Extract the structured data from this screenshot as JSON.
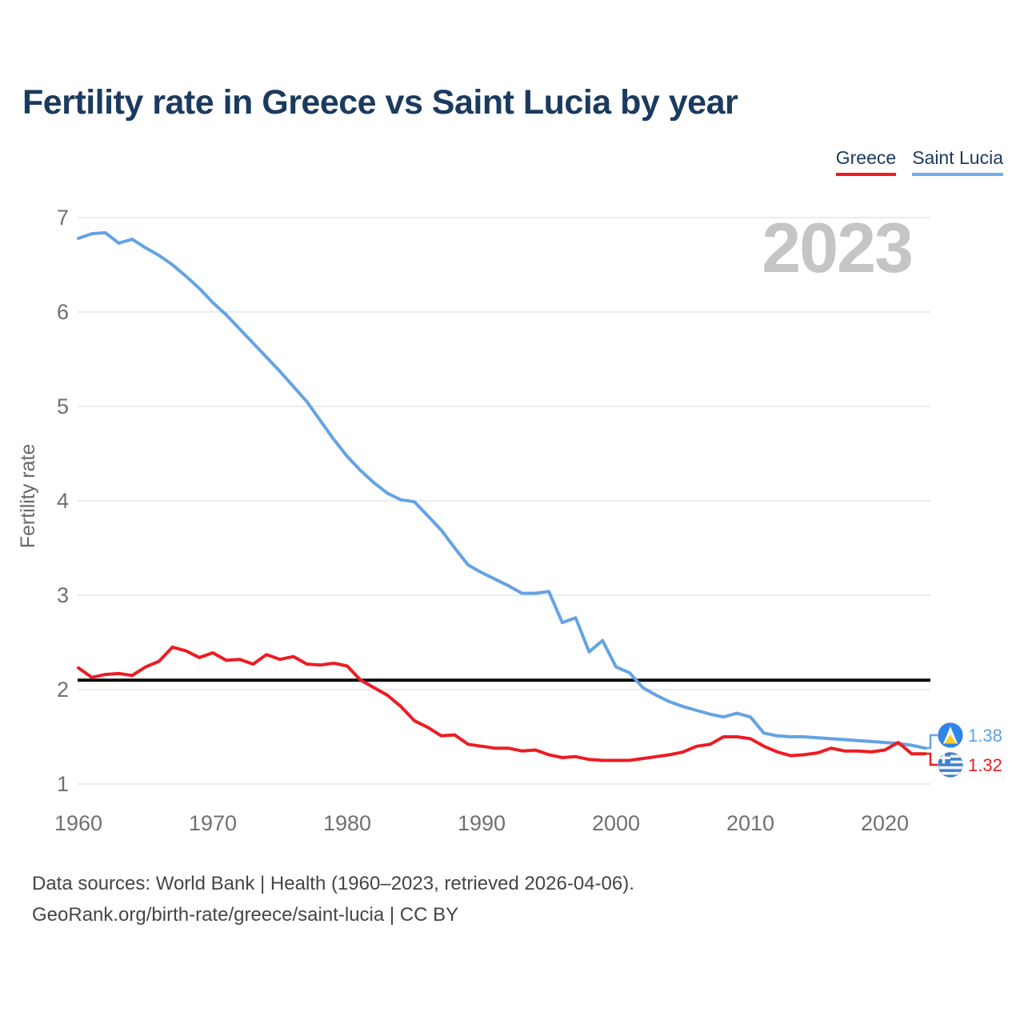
{
  "page": {
    "title": "Fertility rate in Greece vs Saint Lucia by year",
    "watermark": "2023",
    "footer_line1": "Data sources: World Bank | Health (1960–2023, retrieved 2026-04-06).",
    "footer_line2": "GeoRank.org/birth-rate/greece/saint-lucia | CC BY"
  },
  "legend": {
    "items": [
      {
        "label": "Greece",
        "color": "#ec1c24"
      },
      {
        "label": "Saint Lucia",
        "color": "#6fadea"
      }
    ]
  },
  "chart_data": {
    "type": "line",
    "title": "Fertility rate in Greece vs Saint Lucia by year",
    "xlabel": "",
    "ylabel": "Fertility rate",
    "x_ticks": [
      1960,
      1970,
      1980,
      1990,
      2000,
      2010,
      2020
    ],
    "y_ticks": [
      1,
      2,
      3,
      4,
      5,
      6,
      7
    ],
    "xlim": [
      1960,
      2023
    ],
    "ylim": [
      1,
      7
    ],
    "grid": "horizontal",
    "legend_position": "top-right",
    "x_start_year": 1960,
    "x_end_year": 2023,
    "x_interval_years": 1,
    "reference_line": {
      "value": 2.1,
      "color": "#0a0a0a"
    },
    "series": [
      {
        "name": "Greece",
        "color": "#ec1c24",
        "end_value_label": "1.32",
        "values": [
          2.23,
          2.13,
          2.16,
          2.17,
          2.15,
          2.24,
          2.3,
          2.45,
          2.41,
          2.34,
          2.39,
          2.31,
          2.32,
          2.27,
          2.37,
          2.32,
          2.35,
          2.27,
          2.26,
          2.28,
          2.25,
          2.1,
          2.02,
          1.94,
          1.82,
          1.67,
          1.6,
          1.51,
          1.52,
          1.42,
          1.4,
          1.38,
          1.38,
          1.35,
          1.36,
          1.31,
          1.28,
          1.29,
          1.26,
          1.25,
          1.25,
          1.25,
          1.27,
          1.29,
          1.31,
          1.34,
          1.4,
          1.42,
          1.5,
          1.5,
          1.48,
          1.4,
          1.34,
          1.3,
          1.31,
          1.33,
          1.38,
          1.35,
          1.35,
          1.34,
          1.36,
          1.44,
          1.32,
          1.32
        ]
      },
      {
        "name": "Saint Lucia",
        "color": "#64a3e4",
        "end_value_label": "1.38",
        "values": [
          6.78,
          6.83,
          6.84,
          6.73,
          6.77,
          6.68,
          6.6,
          6.5,
          6.38,
          6.25,
          6.1,
          5.97,
          5.82,
          5.67,
          5.52,
          5.37,
          5.21,
          5.05,
          4.85,
          4.65,
          4.47,
          4.32,
          4.19,
          4.08,
          4.01,
          3.99,
          3.84,
          3.69,
          3.5,
          3.32,
          3.24,
          3.17,
          3.1,
          3.02,
          3.02,
          3.04,
          2.71,
          2.76,
          2.4,
          2.52,
          2.24,
          2.18,
          2.02,
          1.94,
          1.87,
          1.82,
          1.78,
          1.74,
          1.71,
          1.75,
          1.71,
          1.54,
          1.51,
          1.5,
          1.5,
          1.49,
          1.48,
          1.47,
          1.46,
          1.45,
          1.44,
          1.43,
          1.41,
          1.38
        ]
      }
    ]
  }
}
